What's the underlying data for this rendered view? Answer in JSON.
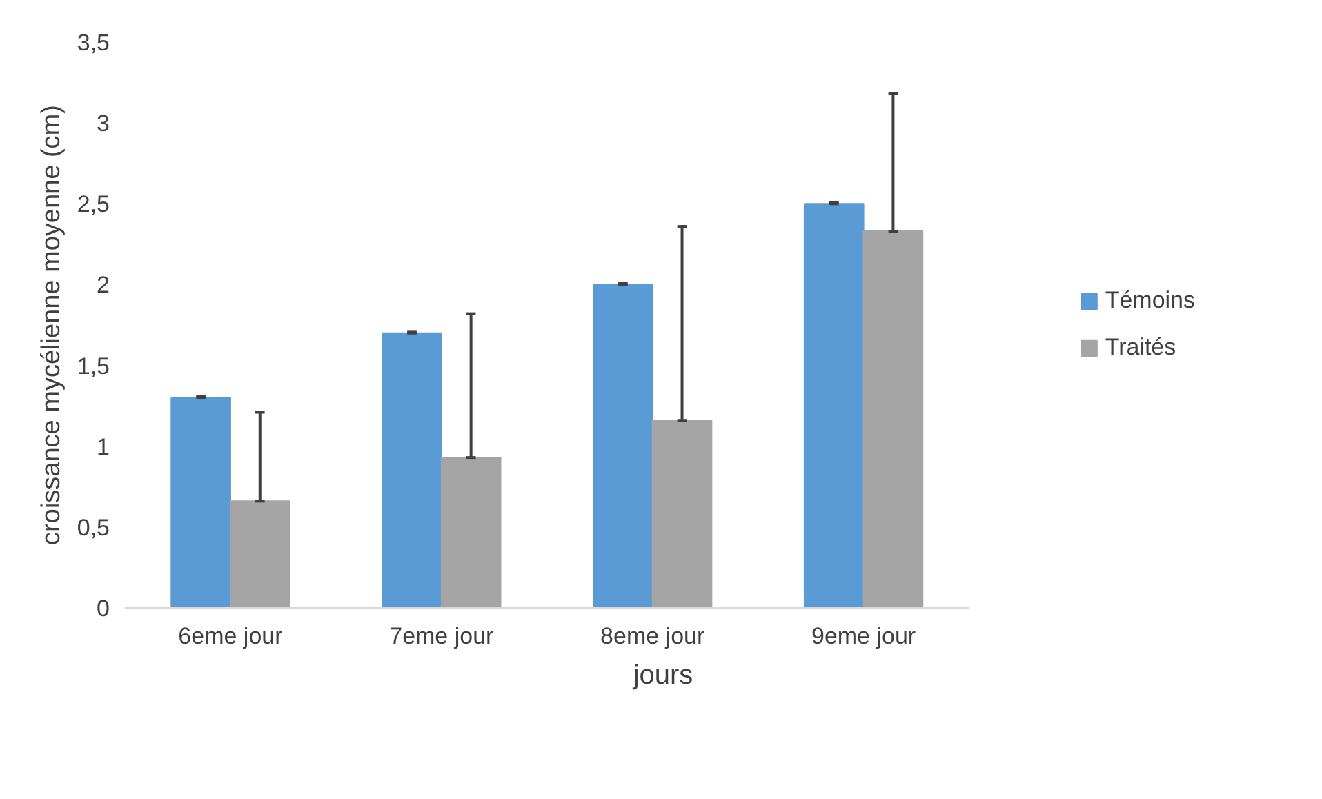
{
  "chart_data": {
    "type": "bar",
    "xlabel": "jours",
    "ylabel": "croissance mycélienne moyenne (cm)",
    "categories": [
      "6eme jour",
      "7eme jour",
      "8eme jour",
      "9eme jour"
    ],
    "series": [
      {
        "name": "Témoins",
        "color": "#5b9bd5",
        "values": [
          1.3,
          1.7,
          2.0,
          2.5
        ],
        "errors": [
          [
            1.3,
            1.31
          ],
          [
            1.7,
            1.71
          ],
          [
            2.0,
            2.01
          ],
          [
            2.5,
            2.51
          ]
        ]
      },
      {
        "name": "Traités",
        "color": "#a5a5a5",
        "values": [
          0.66,
          0.93,
          1.16,
          2.33
        ],
        "errors": [
          [
            0.66,
            1.21
          ],
          [
            0.93,
            1.82
          ],
          [
            1.16,
            2.36
          ],
          [
            2.33,
            3.18
          ]
        ]
      }
    ],
    "ylim": [
      0,
      3.5
    ],
    "yticks": [
      0,
      {
        "value": 0.5,
        "label": "0,5"
      },
      1,
      {
        "value": 1.5,
        "label": "1,5"
      },
      2,
      {
        "value": 2.5,
        "label": "2,5"
      },
      3,
      {
        "value": 3.5,
        "label": "3,5"
      }
    ],
    "grid": false,
    "legend": "right"
  }
}
